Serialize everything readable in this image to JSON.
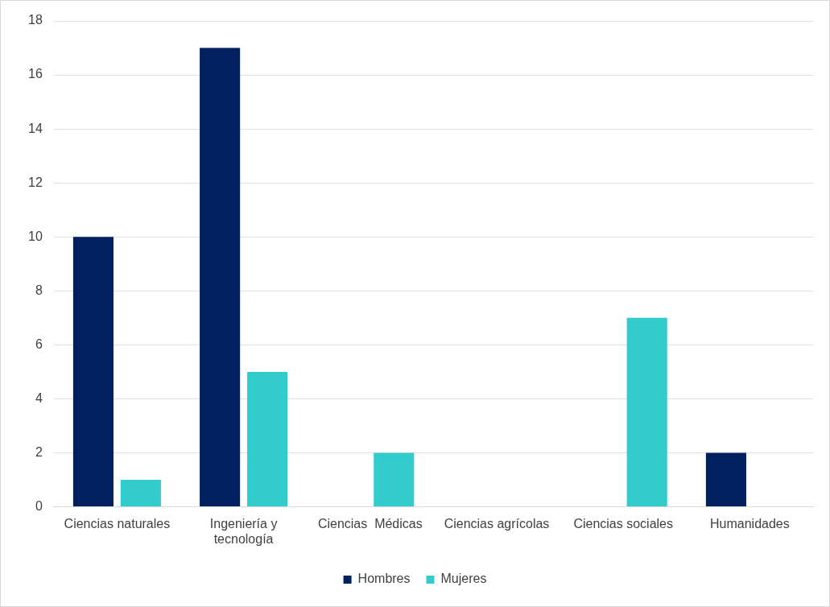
{
  "chart_data": {
    "type": "bar",
    "categories": [
      "Ciencias naturales",
      "Ingeniería y tecnología",
      "Ciencias  Médicas",
      "Ciencias agrícolas",
      "Ciencias sociales",
      "Humanidades"
    ],
    "series": [
      {
        "name": "Hombres",
        "color": "#002060",
        "values": [
          10,
          17,
          0,
          0,
          0,
          2
        ]
      },
      {
        "name": "Mujeres",
        "color": "#33cccc",
        "values": [
          1,
          5,
          2,
          0,
          7,
          0
        ]
      }
    ],
    "ylim": [
      0,
      18
    ],
    "yticks": [
      0,
      2,
      4,
      6,
      8,
      10,
      12,
      14,
      16,
      18
    ],
    "grid": "y",
    "legend": "bottom"
  }
}
